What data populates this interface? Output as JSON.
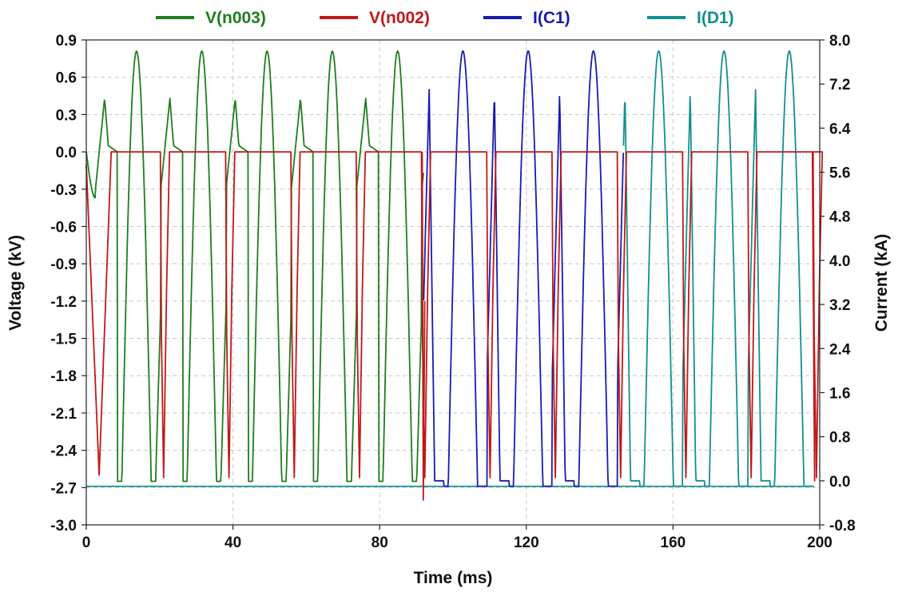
{
  "chart_data": {
    "type": "line",
    "title": "",
    "xlabel": "Time (ms)",
    "ylabel_left": "Voltage (kV)",
    "ylabel_right": "Current (kA)",
    "xlim": [
      0,
      200
    ],
    "ylim_left": [
      -3.0,
      0.9
    ],
    "ylim_right": [
      -0.8,
      8.0
    ],
    "x_ticks": [
      0,
      40,
      80,
      120,
      160,
      200
    ],
    "y_ticks_left": [
      "0.9",
      "0.6",
      "0.3",
      "0.0",
      "-0.3",
      "-0.6",
      "-0.9",
      "-1.2",
      "-1.5",
      "-1.8",
      "-2.1",
      "-2.4",
      "-2.7",
      "-3.0"
    ],
    "y_ticks_right": [
      "8.0",
      "7.2",
      "6.4",
      "5.6",
      "4.8",
      "4.0",
      "3.2",
      "2.4",
      "1.6",
      "0.8",
      "0.0",
      "-0.8"
    ],
    "grid": true,
    "legend_position": "top",
    "series": [
      {
        "name": "V(n003)",
        "axis": "left",
        "color": "#1e7d1e",
        "period": 17.8,
        "pulses": [
          0,
          1,
          2,
          3,
          4
        ],
        "notes_range_ms": [
          0,
          92
        ],
        "points": [
          [
            0,
            0.0
          ],
          [
            2,
            -0.37
          ],
          [
            4,
            -0.25
          ],
          [
            6,
            0.43
          ],
          [
            8,
            0.05
          ],
          [
            10,
            0.0
          ],
          [
            13.6,
            0.81
          ],
          [
            17,
            0.0
          ],
          [
            19.8,
            -1.28
          ]
        ]
      },
      {
        "name": "V(n002)",
        "axis": "left",
        "color": "#c01818",
        "points": [
          [
            0,
            -0.1
          ],
          [
            3.5,
            -2.6
          ],
          [
            7,
            0.0
          ],
          [
            20.1,
            0.0
          ],
          [
            20.6,
            -1.5
          ],
          [
            21.3,
            -2.6
          ],
          [
            23,
            0.0
          ],
          [
            198,
            0.0
          ],
          [
            198.5,
            -2.65
          ]
        ]
      },
      {
        "name": "I(C1)",
        "axis": "right",
        "color": "#1a1aae",
        "range_ms": [
          92,
          147
        ],
        "points": [
          [
            92,
            -0.1
          ],
          [
            102,
            7.8
          ],
          [
            112,
            7.1
          ],
          [
            121,
            7.8
          ],
          [
            129,
            7.1
          ],
          [
            138,
            7.8
          ]
        ]
      },
      {
        "name": "I(D1)",
        "axis": "right",
        "color": "#138f8f",
        "range_ms": [
          146,
          200
        ],
        "points": [
          [
            147,
            7.1
          ],
          [
            156,
            7.8
          ],
          [
            165,
            7.1
          ],
          [
            174,
            7.8
          ],
          [
            183,
            7.1
          ],
          [
            192,
            7.8
          ]
        ]
      }
    ]
  }
}
